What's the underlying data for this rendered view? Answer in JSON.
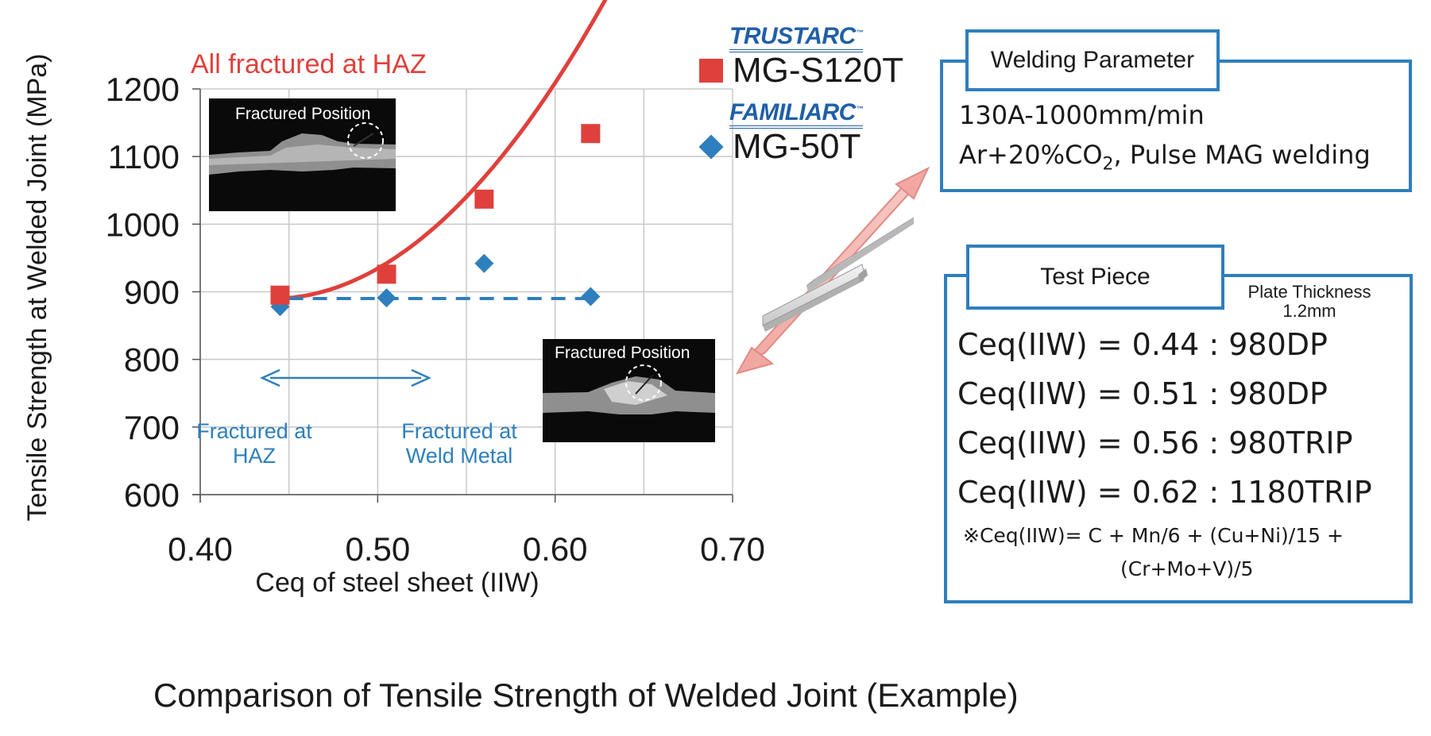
{
  "chart_data": {
    "type": "scatter",
    "ylabel": "Tensile Strength at Welded Joint (MPa)",
    "xlabel": "Ceq of steel sheet (IIW)",
    "xlim": [
      0.4,
      0.7
    ],
    "ylim": [
      600,
      1200
    ],
    "x_ticks": [
      "0.40",
      "0.50",
      "0.60",
      "0.70"
    ],
    "y_ticks": [
      "600",
      "700",
      "800",
      "900",
      "1000",
      "1100",
      "1200"
    ],
    "grid": true,
    "series": [
      {
        "name": "MG-S120T",
        "brand": "TRUSTARC",
        "marker": "square",
        "color": "#e0403c",
        "points": [
          {
            "x": 0.445,
            "y": 895
          },
          {
            "x": 0.505,
            "y": 926
          },
          {
            "x": 0.56,
            "y": 1037
          },
          {
            "x": 0.62,
            "y": 1134
          }
        ],
        "trend_line": "solid curve"
      },
      {
        "name": "MG-50T",
        "brand": "FAMILIARC",
        "marker": "diamond",
        "color": "#2e7fbd",
        "points": [
          {
            "x": 0.445,
            "y": 878
          },
          {
            "x": 0.505,
            "y": 891
          },
          {
            "x": 0.56,
            "y": 942
          },
          {
            "x": 0.62,
            "y": 893
          }
        ],
        "trend_line": "dashed horizontal at 890"
      }
    ],
    "annotations": {
      "red_note": "All fractured at HAZ",
      "blue_left_line1": "Fractured at",
      "blue_left_line2": "HAZ",
      "blue_right_line1": "Fractured at",
      "blue_right_line2": "Weld Metal",
      "photo_caption_1": "Fractured Position",
      "photo_caption_2": "Fractured Position"
    },
    "legend_position": "top-right (outside plot)"
  },
  "legend": {
    "brand1": "TRUSTARC",
    "brand1_tm": "™",
    "product1": "MG-S120T",
    "brand2": "FAMILIARC",
    "brand2_tm": "™",
    "product2": "MG-50T"
  },
  "welding_box": {
    "title": "Welding Parameter",
    "line1": "130A-1000mm/min",
    "line2_pre": "Ar+20%CO",
    "line2_sub": "2",
    "line2_post": ", Pulse MAG welding"
  },
  "test_piece_box": {
    "title": "Test Piece",
    "plate_note_line1": "Plate Thickness",
    "plate_note_line2": "1.2mm",
    "ceq_lines": [
      "Ceq(IIW) = 0.44 : 980DP",
      "Ceq(IIW) = 0.51 : 980DP",
      "Ceq(IIW) = 0.56 : 980TRIP",
      "Ceq(IIW) = 0.62 : 1180TRIP"
    ],
    "formula_line1": "※Ceq(IIW)= C + Mn/6 + (Cu+Ni)/15 +",
    "formula_line2": "(Cr+Mo+V)/5"
  },
  "caption": "Comparison of Tensile Strength of Welded Joint (Example)",
  "colors": {
    "red": "#e0403c",
    "blue": "#2e7fbd",
    "brand_blue": "#1f5fa8",
    "grid": "#c8c8c8"
  }
}
